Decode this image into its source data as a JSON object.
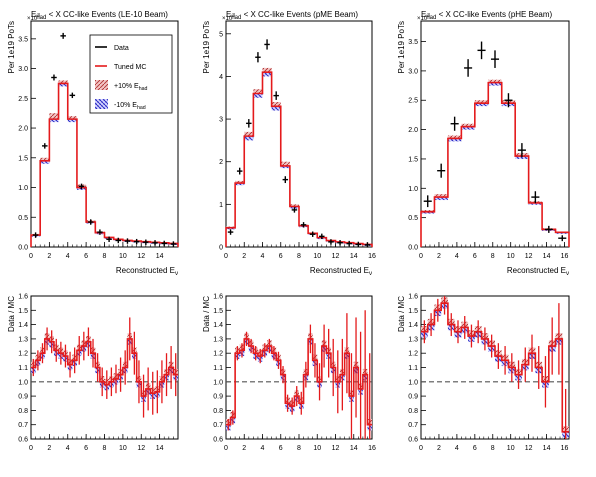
{
  "chart_data": [
    {
      "type": "line",
      "title_main": "E",
      "title_sub": "had",
      "title_rest": " < X CC-like Events (LE-10 Beam)",
      "scale_label": "×10",
      "scale_exp": "3",
      "ylabel": "Per 1e19 PoTs",
      "xlabel_main": "Reconstructed E",
      "xlabel_sub": "ν",
      "xlim": [
        0,
        16
      ],
      "ylim": [
        0,
        3.8
      ],
      "xticks": [
        0,
        2,
        4,
        6,
        8,
        10,
        12,
        14
      ],
      "yticks": [
        0,
        0.5,
        1,
        1.5,
        2,
        2.5,
        3,
        3.5
      ],
      "xtick_labels": [
        "0",
        "2",
        "4",
        "6",
        "8",
        "10",
        "12",
        "14"
      ],
      "ytick_labels": [
        "0.0",
        "0.5",
        "1.0",
        "1.5",
        "2.0",
        "2.5",
        "3.0",
        "3.5"
      ],
      "bin_edges": [
        0,
        1,
        2,
        3,
        4,
        5,
        6,
        7,
        8,
        9,
        10,
        11,
        12,
        13,
        14,
        15,
        16
      ],
      "legend": {
        "entries": [
          {
            "label": "Data",
            "style": "data"
          },
          {
            "label": "Tuned MC",
            "style": "mc"
          },
          {
            "label_main": "+10% E",
            "label_sub": "had",
            "style": "up"
          },
          {
            "label_main": "-10% E",
            "label_sub": "had",
            "style": "down"
          }
        ]
      },
      "series": [
        {
          "name": "Tuned MC",
          "color": "#e41a1c",
          "values": [
            0.2,
            1.45,
            2.15,
            2.75,
            2.15,
            1.0,
            0.42,
            0.24,
            0.16,
            0.13,
            0.11,
            0.1,
            0.09,
            0.08,
            0.07,
            0.06
          ]
        },
        {
          "name": "+10% Ehad",
          "color": "#c0504d",
          "values": [
            0.22,
            1.5,
            2.25,
            2.8,
            2.2,
            1.05,
            0.45,
            0.26,
            0.17,
            0.14,
            0.12,
            0.1,
            0.09,
            0.08,
            0.07,
            0.06
          ]
        },
        {
          "name": "-10% Ehad",
          "color": "#5555ee",
          "values": [
            0.18,
            1.4,
            2.1,
            2.7,
            2.1,
            0.96,
            0.4,
            0.22,
            0.15,
            0.12,
            0.1,
            0.09,
            0.08,
            0.07,
            0.06,
            0.05
          ]
        },
        {
          "name": "Data",
          "color": "#000000",
          "values": [
            0.2,
            1.7,
            2.85,
            3.55,
            2.55,
            1.02,
            0.42,
            0.25,
            0.13,
            0.11,
            0.1,
            0.09,
            0.08,
            0.07,
            0.06,
            0.05
          ],
          "yerr": [
            0.02,
            0.04,
            0.05,
            0.05,
            0.04,
            0.03,
            0.02,
            0.02,
            0.01,
            0.01,
            0.01,
            0.01,
            0.01,
            0.01,
            0.01,
            0.01
          ]
        }
      ]
    },
    {
      "type": "line",
      "title_main": "E",
      "title_sub": "had",
      "title_rest": " < X CC-like Events (pME Beam)",
      "scale_label": "×10",
      "scale_exp": "3",
      "ylabel": "Per 1e19 PoTs",
      "xlabel_main": "Reconstructed E",
      "xlabel_sub": "ν",
      "xlim": [
        0,
        16
      ],
      "ylim": [
        0,
        5.3
      ],
      "xticks": [
        0,
        2,
        4,
        6,
        8,
        10,
        12,
        14,
        16
      ],
      "yticks": [
        0,
        1,
        2,
        3,
        4,
        5
      ],
      "xtick_labels": [
        "0",
        "2",
        "4",
        "6",
        "8",
        "10",
        "12",
        "14",
        "16"
      ],
      "ytick_labels": [
        "0",
        "1",
        "2",
        "3",
        "4",
        "5"
      ],
      "bin_edges": [
        0,
        1,
        2,
        3,
        4,
        5,
        6,
        7,
        8,
        9,
        10,
        11,
        12,
        13,
        14,
        15,
        16
      ],
      "series": [
        {
          "name": "Tuned MC",
          "color": "#e41a1c",
          "values": [
            0.45,
            1.5,
            2.6,
            3.6,
            4.1,
            3.3,
            1.9,
            0.95,
            0.5,
            0.32,
            0.22,
            0.15,
            0.12,
            0.1,
            0.08,
            0.06
          ]
        },
        {
          "name": "+10% Ehad",
          "color": "#c0504d",
          "values": [
            0.48,
            1.55,
            2.7,
            3.7,
            4.2,
            3.4,
            2.0,
            1.0,
            0.52,
            0.34,
            0.23,
            0.16,
            0.13,
            0.1,
            0.08,
            0.07
          ]
        },
        {
          "name": "-10% Ehad",
          "color": "#5555ee",
          "values": [
            0.42,
            1.45,
            2.5,
            3.5,
            4.0,
            3.2,
            1.85,
            0.9,
            0.48,
            0.3,
            0.2,
            0.14,
            0.11,
            0.09,
            0.07,
            0.05
          ]
        },
        {
          "name": "Data",
          "color": "#000000",
          "values": [
            0.35,
            1.78,
            2.9,
            4.45,
            4.75,
            3.55,
            1.58,
            0.87,
            0.52,
            0.3,
            0.25,
            0.12,
            0.1,
            0.08,
            0.06,
            0.05
          ],
          "yerr": [
            0.05,
            0.08,
            0.1,
            0.12,
            0.12,
            0.1,
            0.08,
            0.06,
            0.05,
            0.04,
            0.04,
            0.03,
            0.03,
            0.02,
            0.02,
            0.02
          ]
        }
      ]
    },
    {
      "type": "line",
      "title_main": "E",
      "title_sub": "had",
      "title_rest": " < X CC-like Events (pHE Beam)",
      "scale_label": "×10",
      "scale_exp": "3",
      "ylabel": "Per 1e19 PoTs",
      "xlabel_main": "Reconstructed E",
      "xlabel_sub": "ν",
      "xlim": [
        0,
        16.5
      ],
      "ylim": [
        0,
        3.85
      ],
      "xticks": [
        0,
        2,
        4,
        6,
        8,
        10,
        12,
        14,
        16
      ],
      "yticks": [
        0,
        0.5,
        1,
        1.5,
        2,
        2.5,
        3,
        3.5
      ],
      "xtick_labels": [
        "0",
        "2",
        "4",
        "6",
        "8",
        "10",
        "12",
        "14",
        "16"
      ],
      "ytick_labels": [
        "0.0",
        "0.5",
        "1.0",
        "1.5",
        "2.0",
        "2.5",
        "3.0",
        "3.5"
      ],
      "bin_edges": [
        0,
        1.5,
        3,
        4.5,
        6,
        7.5,
        9,
        10.5,
        12,
        13.5,
        15,
        16.5
      ],
      "series": [
        {
          "name": "Tuned MC",
          "color": "#e41a1c",
          "values": [
            0.6,
            0.85,
            1.85,
            2.05,
            2.45,
            2.8,
            2.45,
            1.55,
            0.75,
            0.3,
            0.25
          ]
        },
        {
          "name": "+10% Ehad",
          "color": "#c0504d",
          "values": [
            0.63,
            0.9,
            1.9,
            2.1,
            2.5,
            2.85,
            2.5,
            1.6,
            0.78,
            0.32,
            0.26
          ]
        },
        {
          "name": "-10% Ehad",
          "color": "#5555ee",
          "values": [
            0.57,
            0.8,
            1.8,
            2.0,
            2.4,
            2.75,
            2.4,
            1.5,
            0.72,
            0.28,
            0.24
          ]
        },
        {
          "name": "Data",
          "color": "#000000",
          "values": [
            0.78,
            1.3,
            2.1,
            3.05,
            3.35,
            3.2,
            2.5,
            1.65,
            0.85,
            0.3,
            0.15
          ],
          "yerr": [
            0.1,
            0.12,
            0.12,
            0.15,
            0.15,
            0.15,
            0.12,
            0.12,
            0.1,
            0.06,
            0.05
          ]
        }
      ]
    },
    {
      "type": "line",
      "ylabel": "Data / MC",
      "xlim": [
        0,
        16
      ],
      "ylim": [
        0.6,
        1.6
      ],
      "xticks": [
        0,
        2,
        4,
        6,
        8,
        10,
        12,
        14
      ],
      "yticks": [
        0.6,
        0.7,
        0.8,
        0.9,
        1.0,
        1.1,
        1.2,
        1.3,
        1.4,
        1.5,
        1.6
      ],
      "xtick_labels": [
        "0",
        "2",
        "4",
        "6",
        "8",
        "10",
        "12",
        "14"
      ],
      "ytick_labels": [
        "0.6",
        "0.7",
        "0.8",
        "0.9",
        "1.0",
        "1.1",
        "1.2",
        "1.3",
        "1.4",
        "1.5",
        "1.6"
      ],
      "reference_line": 1.0,
      "band_half_width": 0.04,
      "x": [
        0.25,
        0.75,
        1.25,
        1.75,
        2.25,
        2.75,
        3.25,
        3.75,
        4.25,
        4.75,
        5.25,
        5.75,
        6.25,
        6.75,
        7.25,
        7.75,
        8.25,
        8.75,
        9.25,
        9.75,
        10.25,
        10.75,
        11.25,
        11.75,
        12.25,
        12.75,
        13.25,
        13.75,
        14.25,
        14.75,
        15.25,
        15.75
      ],
      "values": [
        1.1,
        1.15,
        1.2,
        1.3,
        1.28,
        1.22,
        1.2,
        1.18,
        1.12,
        1.15,
        1.22,
        1.25,
        1.28,
        1.2,
        1.1,
        1.0,
        0.98,
        1.0,
        1.02,
        1.05,
        1.1,
        1.3,
        1.2,
        1.0,
        0.9,
        0.95,
        0.92,
        0.93,
        1.0,
        1.05,
        1.1,
        1.05
      ],
      "yerr": [
        0.06,
        0.07,
        0.07,
        0.08,
        0.08,
        0.08,
        0.08,
        0.08,
        0.09,
        0.09,
        0.1,
        0.1,
        0.1,
        0.1,
        0.1,
        0.1,
        0.1,
        0.1,
        0.1,
        0.12,
        0.12,
        0.15,
        0.15,
        0.15,
        0.15,
        0.15,
        0.15,
        0.15,
        0.15,
        0.15,
        0.15,
        0.15
      ]
    },
    {
      "type": "line",
      "ylabel": "Data / MC",
      "xlim": [
        0,
        16
      ],
      "ylim": [
        0.6,
        1.6
      ],
      "xticks": [
        0,
        2,
        4,
        6,
        8,
        10,
        12,
        14,
        16
      ],
      "yticks": [
        0.6,
        0.7,
        0.8,
        0.9,
        1.0,
        1.1,
        1.2,
        1.3,
        1.4,
        1.5,
        1.6
      ],
      "xtick_labels": [
        "0",
        "2",
        "4",
        "6",
        "8",
        "10",
        "12",
        "14",
        "16"
      ],
      "ytick_labels": [
        "0.6",
        "0.7",
        "0.8",
        "0.9",
        "1.0",
        "1.1",
        "1.2",
        "1.3",
        "1.4",
        "1.5",
        "1.6"
      ],
      "reference_line": 1.0,
      "band_half_width": 0.04,
      "x": [
        0.25,
        0.75,
        1.25,
        1.75,
        2.25,
        2.75,
        3.25,
        3.75,
        4.25,
        4.75,
        5.25,
        5.75,
        6.25,
        6.75,
        7.25,
        7.75,
        8.25,
        8.75,
        9.25,
        9.75,
        10.25,
        10.75,
        11.25,
        11.75,
        12.25,
        12.75,
        13.25,
        13.75,
        14.25,
        14.75,
        15.25,
        15.75
      ],
      "values": [
        0.7,
        0.75,
        1.2,
        1.22,
        1.3,
        1.25,
        1.2,
        1.18,
        1.22,
        1.25,
        1.2,
        1.15,
        1.05,
        0.85,
        0.83,
        0.9,
        0.85,
        1.05,
        1.3,
        1.15,
        1.0,
        1.25,
        1.2,
        1.1,
        1.0,
        1.05,
        1.2,
        0.9,
        1.1,
        0.95,
        1.05,
        0.7
      ],
      "yerr": [
        0.04,
        0.05,
        0.05,
        0.05,
        0.05,
        0.05,
        0.05,
        0.05,
        0.05,
        0.05,
        0.05,
        0.06,
        0.06,
        0.06,
        0.06,
        0.07,
        0.08,
        0.09,
        0.1,
        0.12,
        0.13,
        0.15,
        0.17,
        0.2,
        0.22,
        0.25,
        0.28,
        0.3,
        0.35,
        0.4,
        0.45,
        0.5
      ]
    },
    {
      "type": "line",
      "ylabel": "Data / MC",
      "xlim": [
        0,
        16.5
      ],
      "ylim": [
        0.6,
        1.6
      ],
      "xticks": [
        0,
        2,
        4,
        6,
        8,
        10,
        12,
        14,
        16
      ],
      "yticks": [
        0.6,
        0.7,
        0.8,
        0.9,
        1.0,
        1.1,
        1.2,
        1.3,
        1.4,
        1.5,
        1.6
      ],
      "xtick_labels": [
        "0",
        "2",
        "4",
        "6",
        "8",
        "10",
        "12",
        "14",
        "16"
      ],
      "ytick_labels": [
        "0.6",
        "0.7",
        "0.8",
        "0.9",
        "1.0",
        "1.1",
        "1.2",
        "1.3",
        "1.4",
        "1.5",
        "1.6"
      ],
      "reference_line": 1.0,
      "band_half_width": 0.04,
      "x": [
        0.375,
        1.125,
        1.875,
        2.625,
        3.375,
        4.125,
        4.875,
        5.625,
        6.375,
        7.125,
        7.875,
        8.625,
        9.375,
        10.125,
        10.875,
        11.625,
        12.375,
        13.125,
        13.875,
        14.625,
        15.375,
        16.125
      ],
      "values": [
        1.35,
        1.4,
        1.5,
        1.55,
        1.4,
        1.35,
        1.38,
        1.32,
        1.35,
        1.3,
        1.25,
        1.18,
        1.15,
        1.1,
        1.05,
        1.12,
        1.2,
        1.1,
        1.0,
        1.25,
        1.3,
        0.65
      ],
      "yerr": [
        0.08,
        0.08,
        0.08,
        0.08,
        0.08,
        0.08,
        0.08,
        0.08,
        0.08,
        0.08,
        0.08,
        0.09,
        0.1,
        0.1,
        0.1,
        0.12,
        0.13,
        0.15,
        0.18,
        0.2,
        0.25,
        0.3
      ]
    }
  ]
}
